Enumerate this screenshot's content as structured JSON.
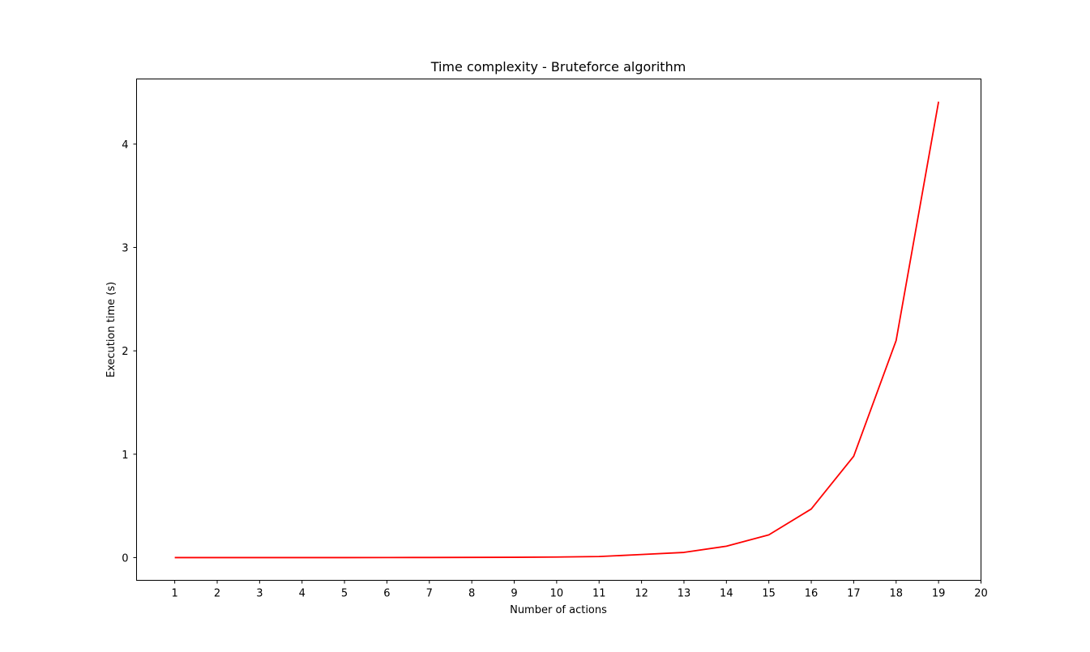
{
  "chart_data": {
    "type": "line",
    "title": "Time complexity - Bruteforce algorithm",
    "xlabel": "Number of actions",
    "ylabel": "Execution time (s)",
    "x": [
      1,
      2,
      3,
      4,
      5,
      6,
      7,
      8,
      9,
      10,
      11,
      12,
      13,
      14,
      15,
      16,
      17,
      18,
      19
    ],
    "series": [
      {
        "color": "#ff0000",
        "values": [
          0.0,
          0.0,
          0.0,
          0.0,
          0.0,
          0.0005,
          0.001,
          0.002,
          0.003,
          0.005,
          0.01,
          0.03,
          0.05,
          0.11,
          0.22,
          0.47,
          0.98,
          2.1,
          4.41
        ]
      }
    ],
    "xticks": [
      1,
      2,
      3,
      4,
      5,
      6,
      7,
      8,
      9,
      10,
      11,
      12,
      13,
      14,
      15,
      16,
      17,
      18,
      19,
      20
    ],
    "yticks": [
      0,
      1,
      2,
      3,
      4
    ],
    "xlim": [
      0.1,
      20.0
    ],
    "ylim": [
      -0.22,
      4.63
    ],
    "grid": false,
    "legend": "none"
  }
}
